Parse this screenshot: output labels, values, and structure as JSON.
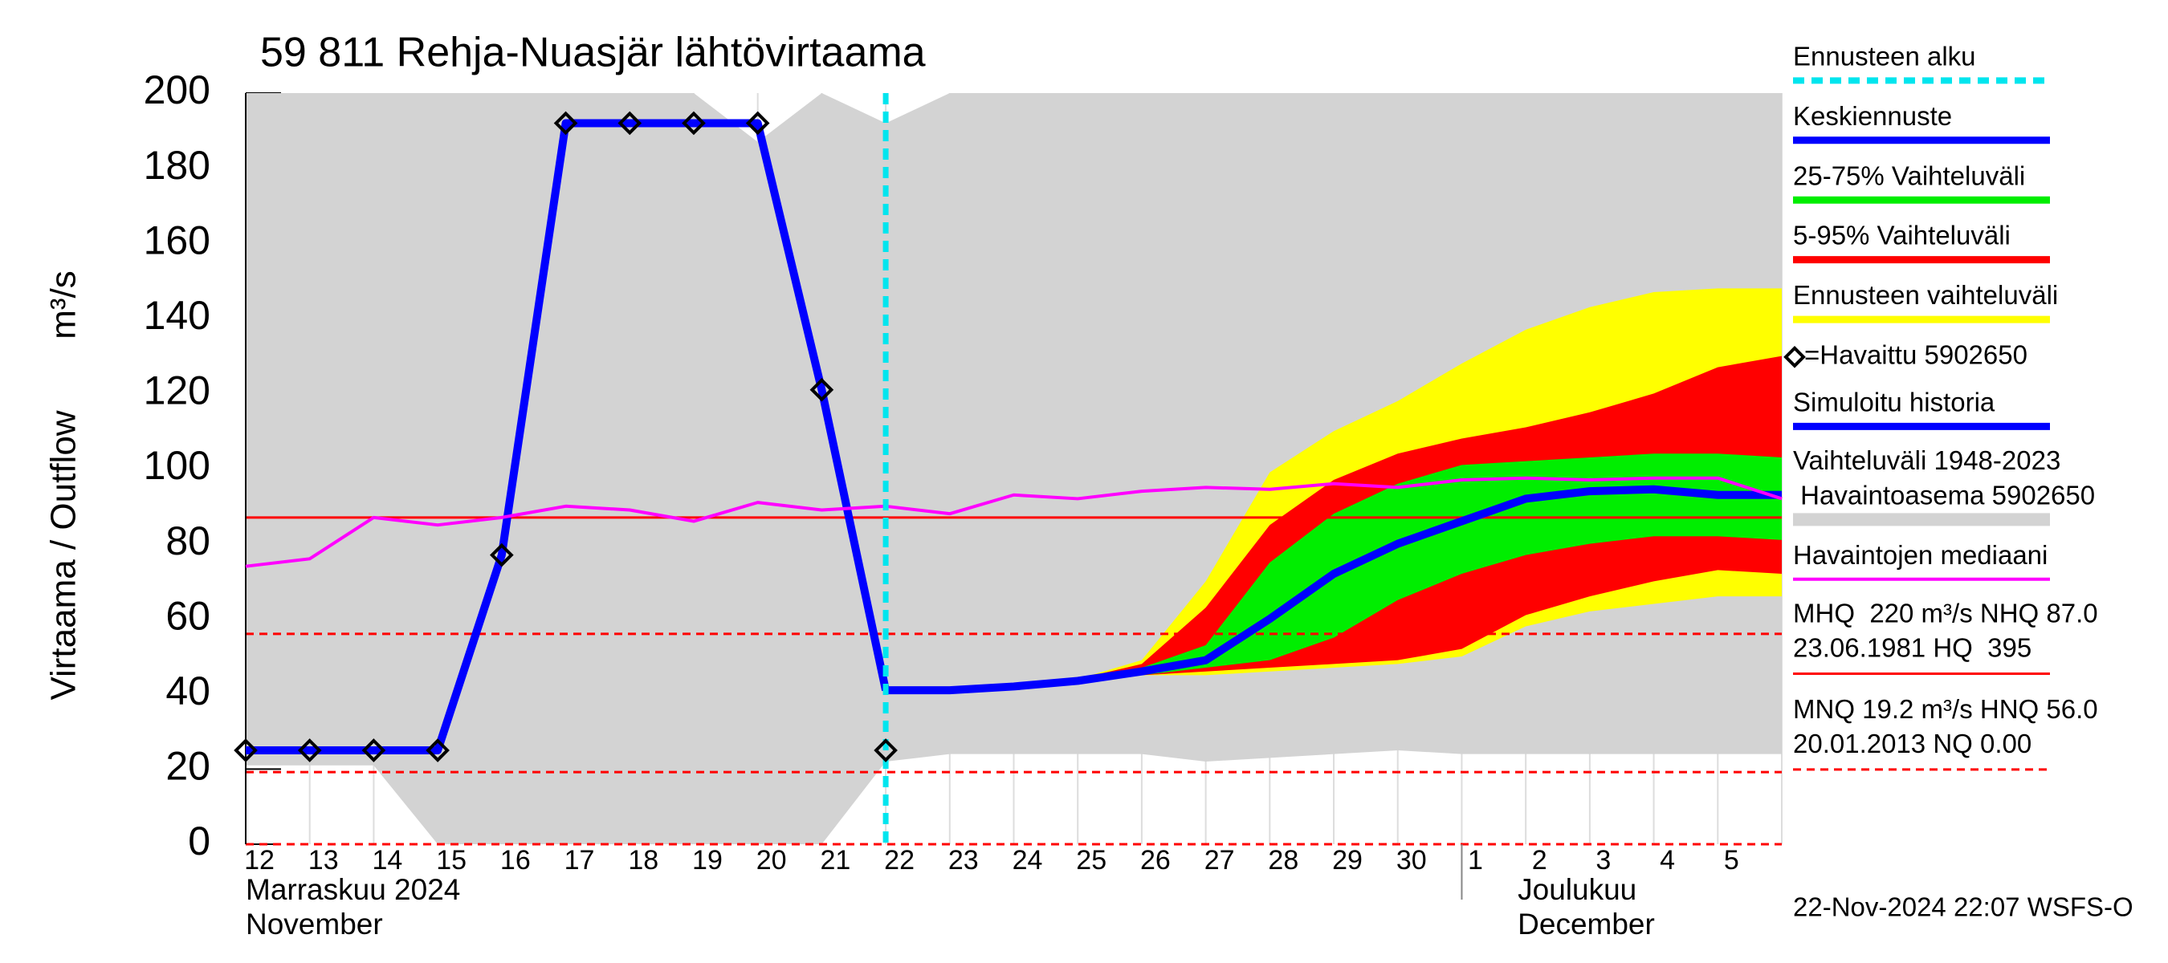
{
  "chart_data": {
    "type": "line",
    "title": "59 811 Rehja-Nuasjär lähtövirtaama",
    "ylabel": "Virtaama / Outflow",
    "yunit": "m³/s",
    "categories": [
      "12",
      "13",
      "14",
      "15",
      "16",
      "17",
      "18",
      "19",
      "20",
      "21",
      "22",
      "23",
      "24",
      "25",
      "26",
      "27",
      "28",
      "29",
      "30",
      "1",
      "2",
      "3",
      "4",
      "5",
      null
    ],
    "month_labels": [
      [
        "Marraskuu 2024",
        "November"
      ],
      [
        "Joulukuu",
        "December"
      ]
    ],
    "ylim": [
      0,
      200
    ],
    "yticks": [
      0,
      20,
      40,
      60,
      80,
      100,
      120,
      140,
      160,
      180,
      200
    ],
    "forecast_start": {
      "at": "22",
      "label": "Ennusteen alku",
      "color": "#00e5ee"
    },
    "bands": [
      {
        "name_lines": [
          "Vaihteluväli 1948-2023",
          " Havaintoasema 5902650"
        ],
        "color": "#d3d3d3",
        "lower": [
          21,
          21,
          21,
          0,
          0,
          0,
          0,
          0,
          0,
          0,
          22,
          24,
          24,
          24,
          24,
          22,
          23,
          24,
          25,
          24,
          24,
          24,
          24,
          24,
          24
        ],
        "upper": [
          200,
          200,
          200,
          200,
          200,
          200,
          200,
          200,
          187,
          200,
          192,
          200,
          200,
          200,
          200,
          200,
          200,
          200,
          200,
          200,
          200,
          200,
          200,
          200,
          200
        ]
      },
      {
        "name": "Ennusteen vaihteluväli",
        "color": "#ffff00",
        "lower": [
          null,
          null,
          null,
          null,
          null,
          null,
          null,
          null,
          null,
          null,
          41,
          41,
          42,
          43,
          45,
          45,
          46,
          47,
          48,
          50,
          58,
          62,
          64,
          66,
          66
        ],
        "upper": [
          null,
          null,
          null,
          null,
          null,
          null,
          null,
          null,
          null,
          null,
          41,
          41,
          42,
          44,
          49,
          70,
          99,
          110,
          118,
          128,
          137,
          143,
          147,
          148,
          148
        ]
      },
      {
        "name": "5-95% Vaihteluväli",
        "color": "#ff0000",
        "lower": [
          null,
          null,
          null,
          null,
          null,
          null,
          null,
          null,
          null,
          null,
          41,
          41,
          42,
          43,
          45,
          46,
          47,
          48,
          49,
          52,
          61,
          66,
          70,
          73,
          72
        ],
        "upper": [
          null,
          null,
          null,
          null,
          null,
          null,
          null,
          null,
          null,
          null,
          41,
          41,
          42,
          44,
          48,
          63,
          85,
          97,
          104,
          108,
          111,
          115,
          120,
          127,
          130
        ]
      },
      {
        "name": "25-75% Vaihteluväli",
        "color": "#00ee00",
        "lower": [
          null,
          null,
          null,
          null,
          null,
          null,
          null,
          null,
          null,
          null,
          41,
          41,
          42,
          43,
          45,
          47,
          49,
          55,
          65,
          72,
          77,
          80,
          82,
          82,
          81
        ],
        "upper": [
          null,
          null,
          null,
          null,
          null,
          null,
          null,
          null,
          null,
          null,
          41,
          41,
          42,
          44,
          47,
          53,
          75,
          88,
          96,
          101,
          102,
          103,
          104,
          104,
          103
        ]
      }
    ],
    "series": [
      {
        "name": "Simuloitu historia",
        "color": "#0000ff",
        "values": [
          25,
          25,
          25,
          25,
          77,
          192,
          192,
          192,
          192,
          121,
          41,
          null,
          null,
          null,
          null,
          null,
          null,
          null,
          null,
          null,
          null,
          null,
          null,
          null,
          null
        ]
      },
      {
        "name": "Keskiennuste",
        "color": "#0000ff",
        "values": [
          null,
          null,
          null,
          null,
          null,
          null,
          null,
          null,
          null,
          null,
          41,
          41,
          42,
          43.5,
          46,
          49,
          60,
          72,
          80,
          86,
          92,
          94,
          94.5,
          93,
          93
        ]
      },
      {
        "name": "Havaintojen mediaani",
        "color": "#ff00ff",
        "values": [
          74,
          76,
          87,
          85,
          87,
          90,
          89,
          86,
          91,
          89,
          90,
          88,
          93,
          92,
          94,
          95,
          94.5,
          96,
          95,
          97,
          97.5,
          97,
          97.5,
          97.5,
          92
        ]
      },
      {
        "name": "=Havaittu 5902650",
        "color": "#000000",
        "marker": "diamond",
        "values": [
          25,
          25,
          25,
          25,
          77,
          192,
          192,
          192,
          192,
          121,
          25,
          null,
          null,
          null,
          null,
          null,
          null,
          null,
          null,
          null,
          null,
          null,
          null,
          null,
          null
        ]
      }
    ],
    "hlines": [
      {
        "value": 87,
        "color": "#ff0000",
        "dash": false,
        "legend": [
          "MHQ  220 m³/s NHQ 87.0",
          "23.06.1981 HQ  395"
        ]
      },
      {
        "value": 19.2,
        "color": "#ff0000",
        "dash": true,
        "legend": [
          "MNQ 19.2 m³/s HNQ 56.0",
          "20.01.2013 NQ 0.00"
        ]
      },
      {
        "value": 56,
        "color": "#ff0000",
        "dash": true
      },
      {
        "value": 0,
        "color": "#ff0000",
        "dash": true
      }
    ],
    "footer": "22-Nov-2024 22:07 WSFS-O"
  }
}
